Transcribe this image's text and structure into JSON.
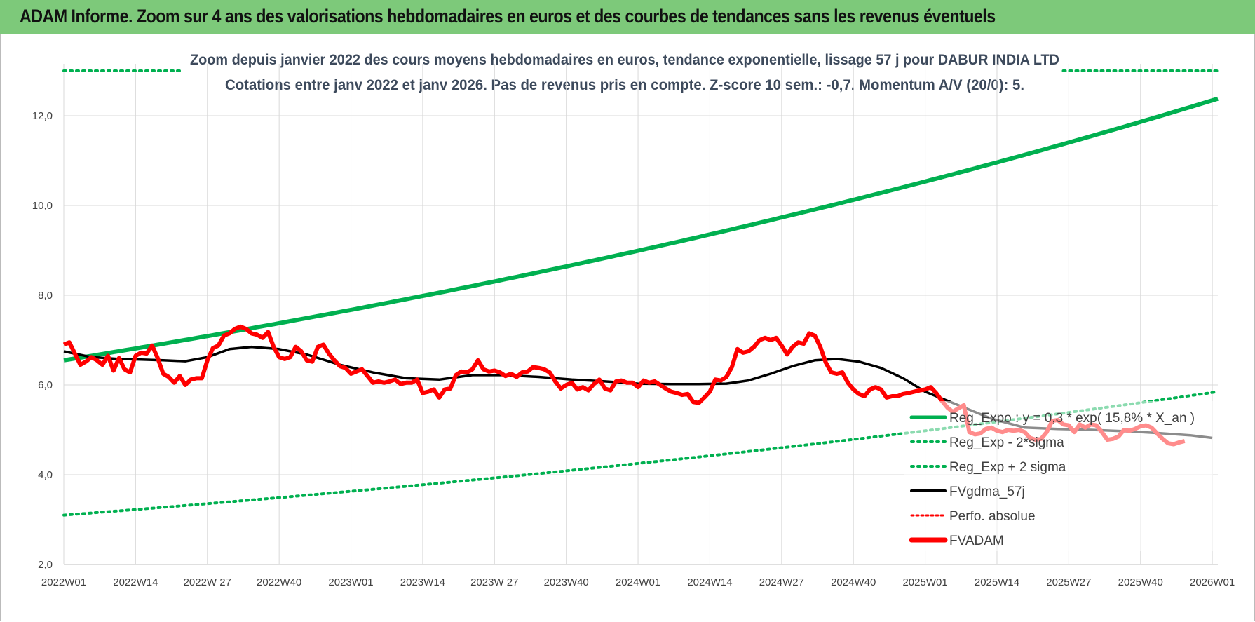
{
  "header": {
    "title": "ADAM Informe. Zoom sur 4 ans des valorisations hebdomadaires en euros et des courbes de tendances sans les revenus éventuels"
  },
  "colors": {
    "header_bg": "#7dc97a",
    "reg_exp": "#00b050",
    "fvgdma": "#000000",
    "fvadam": "#ff0000",
    "perfo": "#ff0000"
  },
  "chart_data": {
    "type": "line",
    "title_line1": "Zoom depuis janvier 2022 des cours moyens hebdomadaires en euros, tendance exponentielle, lissage 57 j pour DABUR INDIA LTD",
    "title_line2": "Cotations entre janv 2022 et janv 2026. Pas de revenus pris en compte. Z-score 10 sem.: -0,7.  Momentum A/V (20/0): 5.",
    "ylim": [
      2,
      13
    ],
    "y_ticks": [
      2,
      4,
      6,
      8,
      10,
      12
    ],
    "y_tick_labels": [
      "2,0",
      "4,0",
      "6,0",
      "8,0",
      "10,0",
      "12,0"
    ],
    "x_range": [
      0,
      209
    ],
    "x_ticks": [
      0,
      13,
      26,
      39,
      52,
      65,
      78,
      91,
      104,
      117,
      130,
      143,
      156,
      169,
      182,
      195,
      208
    ],
    "x_tick_labels": [
      "2022W01",
      "2022W14",
      "2022W 27",
      "2022W40",
      "2023W01",
      "2023W14",
      "2023W 27",
      "2023W40",
      "2024W01",
      "2024W14",
      "2024W27",
      "2024W40",
      "2025W01",
      "2025W14",
      "2025W27",
      "2025W40",
      "2026W01"
    ],
    "legend": [
      "Reg_Expo : y = 0,3 * exp( 15,8% *  X_an )",
      "Reg_Exp - 2*sigma",
      "Reg_Exp + 2 sigma",
      "FVgdma_57j",
      "Perfo. absolue",
      "FVADAM"
    ],
    "series": [
      {
        "name": "Reg_Expo",
        "type": "exp",
        "start": 6.55,
        "end": 12.38,
        "style": "solid-green"
      },
      {
        "name": "Reg_Exp - 2*sigma",
        "type": "exp",
        "start": 3.1,
        "end": 5.85,
        "style": "dotted-green"
      },
      {
        "name": "Reg_Exp + 2 sigma",
        "type": "constant",
        "value": 13.0,
        "segments": [
          [
            0,
            21
          ],
          [
            181,
            209
          ]
        ],
        "style": "dotted-green"
      },
      {
        "name": "FVgdma_57j",
        "x": [
          0,
          5,
          10,
          13,
          18,
          22,
          26,
          30,
          34,
          39,
          44,
          50,
          56,
          62,
          68,
          74,
          80,
          86,
          92,
          98,
          104,
          110,
          115,
          120,
          124,
          128,
          132,
          136,
          140,
          144,
          148,
          152,
          156,
          162,
          168,
          174,
          180,
          186,
          192,
          198,
          204,
          208
        ],
        "values": [
          6.75,
          6.62,
          6.58,
          6.57,
          6.55,
          6.53,
          6.62,
          6.8,
          6.85,
          6.8,
          6.68,
          6.45,
          6.28,
          6.15,
          6.12,
          6.22,
          6.22,
          6.18,
          6.12,
          6.08,
          6.03,
          6.02,
          6.02,
          6.03,
          6.1,
          6.25,
          6.42,
          6.55,
          6.58,
          6.52,
          6.38,
          6.15,
          5.85,
          5.55,
          5.25,
          5.05,
          5.02,
          5.0,
          4.97,
          4.93,
          4.88,
          4.82
        ]
      },
      {
        "name": "FVADAM",
        "values": [
          6.9,
          6.95,
          6.7,
          6.45,
          6.52,
          6.62,
          6.55,
          6.45,
          6.65,
          6.32,
          6.6,
          6.35,
          6.28,
          6.65,
          6.72,
          6.7,
          6.88,
          6.6,
          6.25,
          6.18,
          6.05,
          6.2,
          6.0,
          6.12,
          6.15,
          6.15,
          6.55,
          6.82,
          6.88,
          7.1,
          7.15,
          7.25,
          7.3,
          7.25,
          7.15,
          7.12,
          7.05,
          7.18,
          6.85,
          6.62,
          6.58,
          6.62,
          6.85,
          6.75,
          6.55,
          6.52,
          6.85,
          6.9,
          6.7,
          6.55,
          6.42,
          6.38,
          6.25,
          6.3,
          6.35,
          6.2,
          6.05,
          6.08,
          6.05,
          6.08,
          6.12,
          6.02,
          6.05,
          6.05,
          6.12,
          5.82,
          5.85,
          5.9,
          5.72,
          5.9,
          5.92,
          6.22,
          6.3,
          6.28,
          6.35,
          6.55,
          6.35,
          6.3,
          6.32,
          6.28,
          6.2,
          6.25,
          6.18,
          6.28,
          6.3,
          6.4,
          6.38,
          6.35,
          6.28,
          6.08,
          5.92,
          6.0,
          6.05,
          5.9,
          5.95,
          5.88,
          6.02,
          6.12,
          5.92,
          5.88,
          6.08,
          6.1,
          6.05,
          6.05,
          5.95,
          6.1,
          6.05,
          6.08,
          6.0,
          5.92,
          5.85,
          5.82,
          5.78,
          5.8,
          5.62,
          5.6,
          5.72,
          5.85,
          6.12,
          6.1,
          6.18,
          6.4,
          6.8,
          6.72,
          6.75,
          6.85,
          7.0,
          7.05,
          7.0,
          7.05,
          6.88,
          6.68,
          6.85,
          6.95,
          6.92,
          7.15,
          7.1,
          6.85,
          6.5,
          6.28,
          6.25,
          6.28,
          6.05,
          5.9,
          5.8,
          5.75,
          5.9,
          5.95,
          5.9,
          5.72,
          5.75,
          5.75,
          5.8,
          5.82,
          5.85,
          5.88,
          5.9,
          5.95,
          5.82,
          5.65,
          5.5,
          5.4,
          5.48,
          5.55,
          4.95,
          4.9,
          4.92,
          5.02,
          5.05,
          4.98,
          4.95,
          5.0,
          4.98,
          5.0,
          4.95,
          4.82,
          4.78,
          4.8,
          4.95,
          5.2,
          5.22,
          5.12,
          5.1,
          4.95,
          5.12,
          5.05,
          5.12,
          5.1,
          4.95,
          4.78,
          4.8,
          4.85,
          5.0,
          4.98,
          5.02,
          5.08,
          5.1,
          5.05,
          4.92,
          4.8,
          4.7,
          4.68,
          4.72,
          4.75
        ]
      }
    ]
  }
}
